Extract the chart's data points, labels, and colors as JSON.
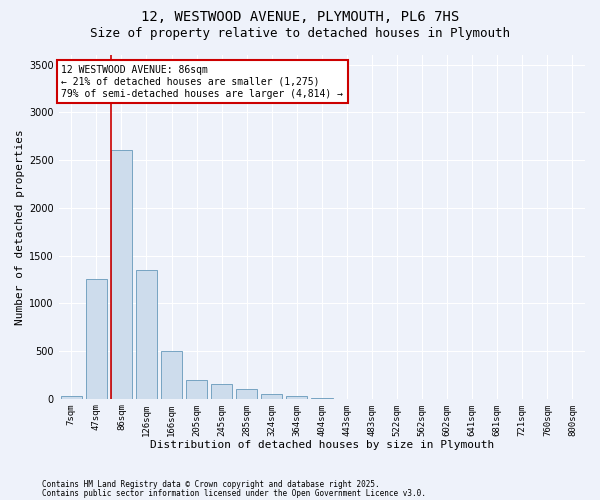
{
  "title1": "12, WESTWOOD AVENUE, PLYMOUTH, PL6 7HS",
  "title2": "Size of property relative to detached houses in Plymouth",
  "xlabel": "Distribution of detached houses by size in Plymouth",
  "ylabel": "Number of detached properties",
  "bar_color": "#cddcec",
  "bar_edge_color": "#6699bb",
  "vline_color": "#cc0000",
  "vline_x_index": 2,
  "annotation_text": "12 WESTWOOD AVENUE: 86sqm\n← 21% of detached houses are smaller (1,275)\n79% of semi-detached houses are larger (4,814) →",
  "categories": [
    "7sqm",
    "47sqm",
    "86sqm",
    "126sqm",
    "166sqm",
    "205sqm",
    "245sqm",
    "285sqm",
    "324sqm",
    "364sqm",
    "404sqm",
    "443sqm",
    "483sqm",
    "522sqm",
    "562sqm",
    "602sqm",
    "641sqm",
    "681sqm",
    "721sqm",
    "760sqm",
    "800sqm"
  ],
  "values": [
    28,
    1250,
    2600,
    1350,
    500,
    200,
    150,
    100,
    50,
    30,
    5,
    2,
    1,
    1,
    0,
    0,
    0,
    0,
    0,
    0,
    0
  ],
  "ylim": [
    0,
    3600
  ],
  "yticks": [
    0,
    500,
    1000,
    1500,
    2000,
    2500,
    3000,
    3500
  ],
  "footer1": "Contains HM Land Registry data © Crown copyright and database right 2025.",
  "footer2": "Contains public sector information licensed under the Open Government Licence v3.0.",
  "bg_color": "#eef2fa",
  "plot_bg_color": "#eef2fa",
  "grid_color": "#ffffff",
  "title_fontsize": 10,
  "subtitle_fontsize": 9,
  "ylabel_fontsize": 8,
  "xlabel_fontsize": 8,
  "tick_fontsize": 6.5,
  "annotation_box_facecolor": "#ffffff",
  "annotation_box_edgecolor": "#cc0000",
  "annotation_fontsize": 7,
  "footer_fontsize": 5.5
}
